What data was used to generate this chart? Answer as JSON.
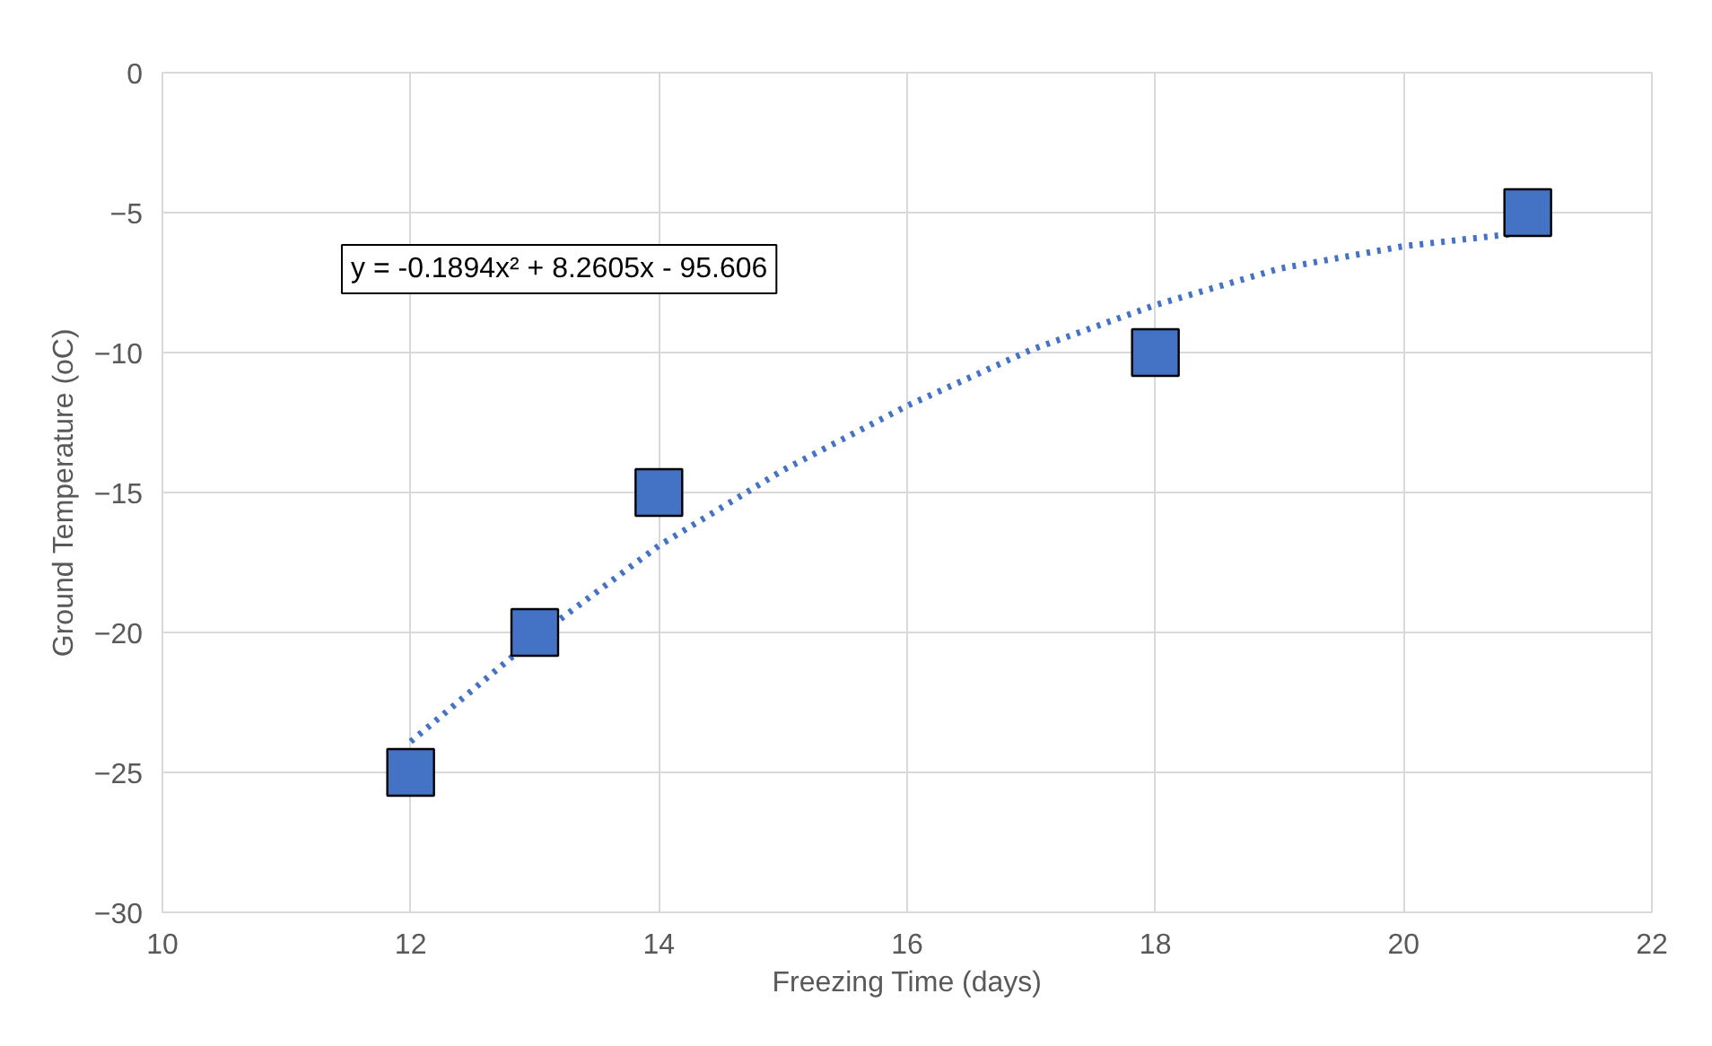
{
  "chart_data": {
    "type": "scatter",
    "xlabel": "Freezing Time (days)",
    "ylabel": "Ground Temperature (oC)",
    "xlim": [
      10,
      22
    ],
    "xticks": [
      10,
      12,
      14,
      16,
      18,
      20,
      22
    ],
    "ylim": [
      -30,
      0
    ],
    "yticks": [
      -30,
      -25,
      -20,
      -15,
      -10,
      -5,
      0
    ],
    "grid": true,
    "marker": "square",
    "series": [
      {
        "color": "#4472c4",
        "x": [
          12,
          13,
          14,
          18,
          21
        ],
        "values": [
          -25,
          -20,
          -15,
          -10,
          -5
        ]
      },
      {
        "type": "line",
        "color": "#4472c4",
        "line_style": "dotted",
        "marker": "none",
        "x": [
          12,
          13,
          14,
          15,
          16,
          17,
          18,
          19,
          20,
          21
        ],
        "values": [
          -23.9,
          -20.2,
          -16.9,
          -14.2,
          -11.9,
          -9.9,
          -8.3,
          -7.0,
          -6.2,
          -5.7
        ]
      }
    ],
    "annotations": [
      "y = -0.1894x² + 8.2605x - 95.606"
    ]
  }
}
